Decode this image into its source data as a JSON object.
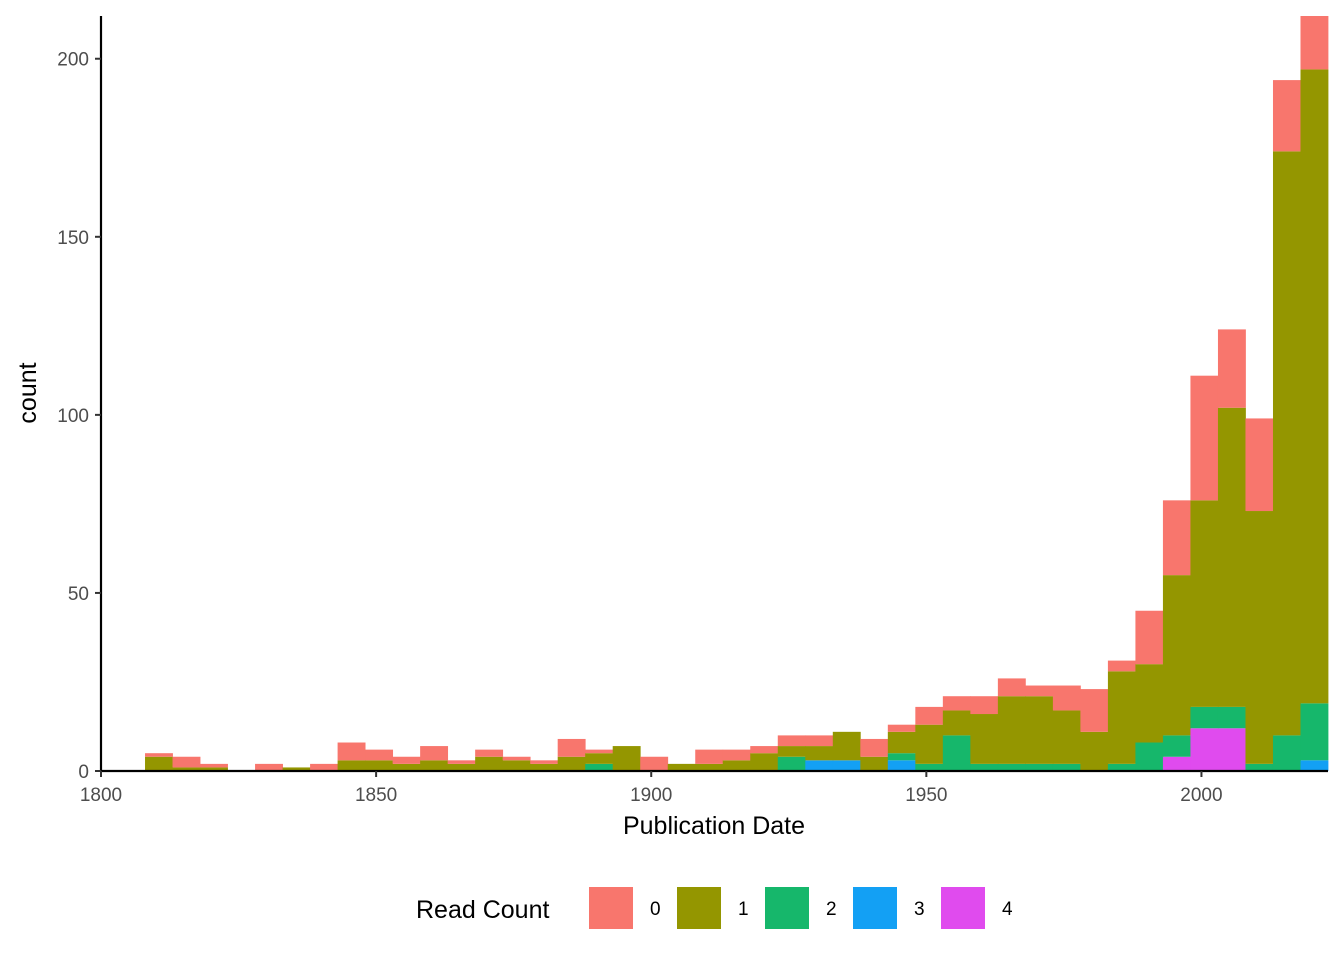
{
  "chart_data": {
    "type": "bar",
    "stacked": true,
    "xlabel": "Publication Date",
    "ylabel": "count",
    "xlim": [
      1800,
      2023
    ],
    "ylim": [
      0,
      212
    ],
    "x_ticks": [
      1800,
      1850,
      1900,
      1950,
      2000
    ],
    "y_ticks": [
      0,
      50,
      100,
      150,
      200
    ],
    "grid": false,
    "legend": {
      "title": "Read Count",
      "position": "bottom"
    },
    "bin_width": 5,
    "bins_start": [
      1808,
      1813,
      1818,
      1823,
      1828,
      1833,
      1838,
      1843,
      1848,
      1853,
      1858,
      1863,
      1868,
      1873,
      1878,
      1883,
      1888,
      1893,
      1898,
      1903,
      1908,
      1913,
      1918,
      1923,
      1928,
      1933,
      1938,
      1943,
      1948,
      1953,
      1958,
      1963,
      1968,
      1973,
      1978,
      1983,
      1988,
      1993,
      1998,
      2003,
      2008,
      2013,
      2018
    ],
    "series": [
      {
        "name": "0",
        "color": "#F8766D",
        "values": [
          1,
          3,
          1,
          0,
          2,
          0,
          2,
          5,
          3,
          2,
          4,
          1,
          2,
          1,
          1,
          5,
          1,
          0,
          4,
          0,
          4,
          3,
          2,
          3,
          3,
          0,
          5,
          2,
          5,
          4,
          5,
          5,
          3,
          7,
          12,
          3,
          15,
          21,
          35,
          22,
          26,
          20,
          15
        ]
      },
      {
        "name": "1",
        "color": "#949600",
        "values": [
          4,
          1,
          1,
          0,
          0,
          1,
          0,
          3,
          3,
          2,
          3,
          2,
          4,
          3,
          2,
          4,
          3,
          7,
          0,
          2,
          2,
          3,
          5,
          3,
          4,
          8,
          4,
          6,
          11,
          7,
          14,
          19,
          19,
          15,
          11,
          26,
          22,
          45,
          58,
          84,
          71,
          164,
          178
        ]
      },
      {
        "name": "2",
        "color": "#16B76B",
        "values": [
          0,
          0,
          0,
          0,
          0,
          0,
          0,
          0,
          0,
          0,
          0,
          0,
          0,
          0,
          0,
          0,
          2,
          0,
          0,
          0,
          0,
          0,
          0,
          4,
          0,
          0,
          0,
          2,
          2,
          10,
          2,
          2,
          2,
          2,
          0,
          2,
          8,
          6,
          6,
          6,
          2,
          10,
          16
        ]
      },
      {
        "name": "3",
        "color": "#13A0F4",
        "values": [
          0,
          0,
          0,
          0,
          0,
          0,
          0,
          0,
          0,
          0,
          0,
          0,
          0,
          0,
          0,
          0,
          0,
          0,
          0,
          0,
          0,
          0,
          0,
          0,
          3,
          3,
          0,
          3,
          0,
          0,
          0,
          0,
          0,
          0,
          0,
          0,
          0,
          0,
          0,
          0,
          0,
          0,
          3
        ]
      },
      {
        "name": "4",
        "color": "#E04BEE",
        "values": [
          0,
          0,
          0,
          0,
          0,
          0,
          0,
          0,
          0,
          0,
          0,
          0,
          0,
          0,
          0,
          0,
          0,
          0,
          0,
          0,
          0,
          0,
          0,
          0,
          0,
          0,
          0,
          0,
          0,
          0,
          0,
          0,
          0,
          0,
          0,
          0,
          0,
          4,
          12,
          12,
          0,
          0,
          0
        ]
      }
    ]
  }
}
